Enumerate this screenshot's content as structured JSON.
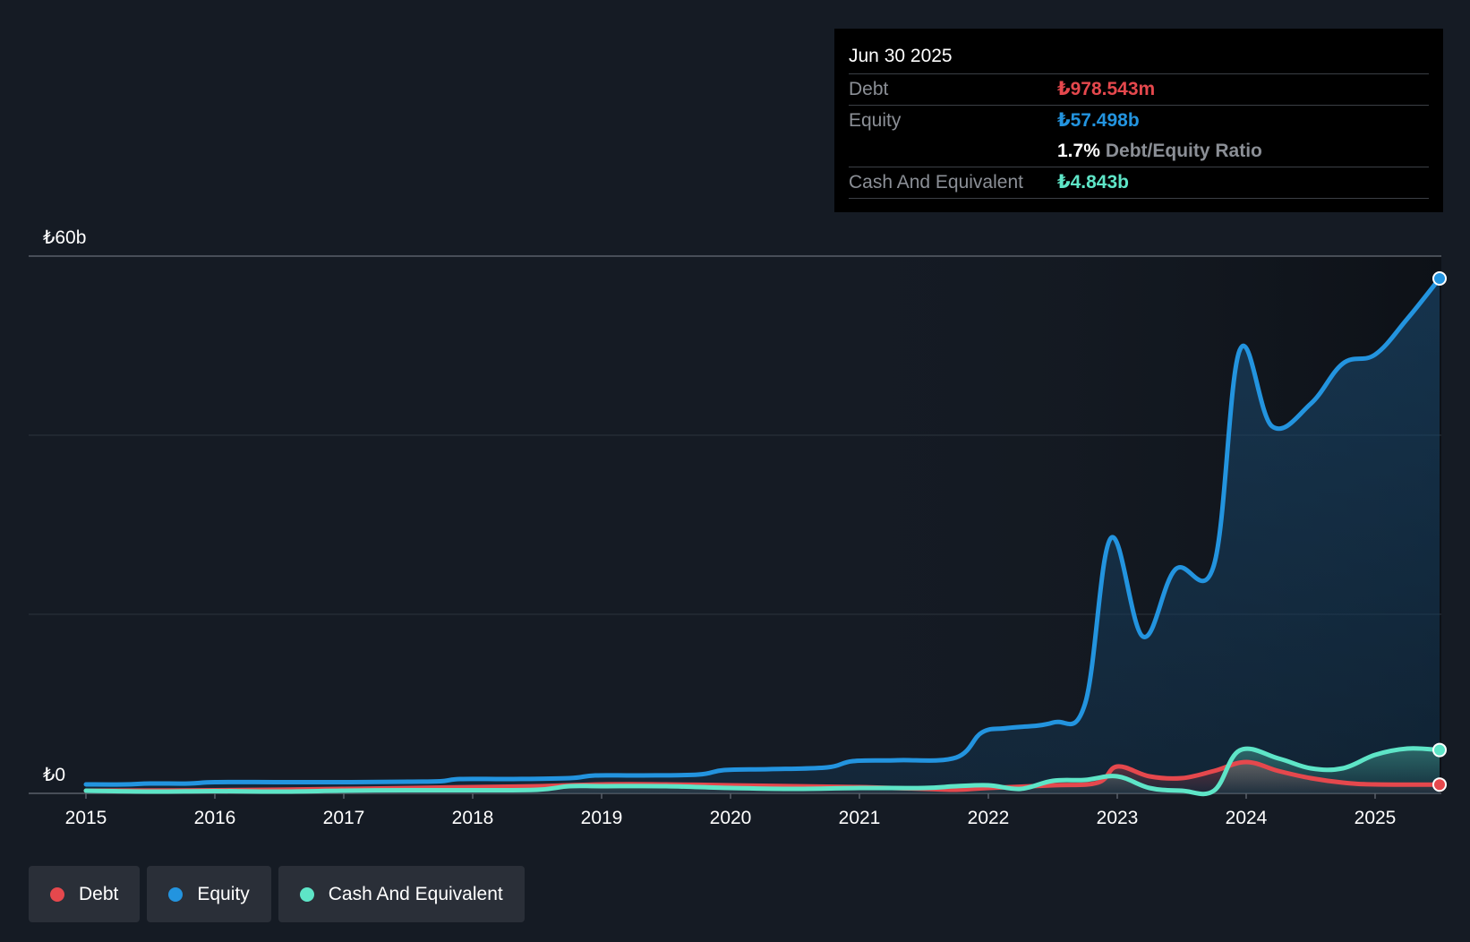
{
  "chart_data": {
    "type": "area",
    "title": "",
    "xlabel": "",
    "ylabel": "",
    "ylim": [
      0,
      60
    ],
    "y_unit": "₺ billions",
    "y_tick_labels": [
      {
        "value": 60,
        "label": "₺60b"
      },
      {
        "value": 0,
        "label": "₺0"
      }
    ],
    "gridlines": [
      60,
      40,
      20,
      0
    ],
    "xlim": [
      2015.0,
      2025.5
    ],
    "x_tick_labels": [
      "2015",
      "2016",
      "2017",
      "2018",
      "2019",
      "2020",
      "2021",
      "2022",
      "2023",
      "2024",
      "2025"
    ],
    "series": [
      {
        "name": "Equity",
        "color": "#2394df",
        "points": [
          [
            2015.0,
            1.0
          ],
          [
            2015.3,
            1.0
          ],
          [
            2015.5,
            1.1
          ],
          [
            2015.8,
            1.1
          ],
          [
            2016.0,
            1.25
          ],
          [
            2016.5,
            1.25
          ],
          [
            2017.0,
            1.25
          ],
          [
            2017.5,
            1.3
          ],
          [
            2017.75,
            1.35
          ],
          [
            2017.9,
            1.6
          ],
          [
            2018.3,
            1.6
          ],
          [
            2018.75,
            1.7
          ],
          [
            2018.95,
            2.0
          ],
          [
            2019.3,
            2.0
          ],
          [
            2019.75,
            2.1
          ],
          [
            2019.95,
            2.6
          ],
          [
            2020.3,
            2.7
          ],
          [
            2020.75,
            2.9
          ],
          [
            2020.95,
            3.6
          ],
          [
            2021.3,
            3.7
          ],
          [
            2021.75,
            4.0
          ],
          [
            2021.95,
            6.8
          ],
          [
            2022.15,
            7.3
          ],
          [
            2022.5,
            7.9
          ],
          [
            2022.75,
            10.0
          ],
          [
            2022.95,
            28.5
          ],
          [
            2023.2,
            17.5
          ],
          [
            2023.45,
            25.0
          ],
          [
            2023.75,
            25.5
          ],
          [
            2023.95,
            49.5
          ],
          [
            2024.2,
            41.0
          ],
          [
            2024.5,
            43.5
          ],
          [
            2024.75,
            48.0
          ],
          [
            2025.0,
            49.0
          ],
          [
            2025.25,
            53.0
          ],
          [
            2025.5,
            57.5
          ]
        ]
      },
      {
        "name": "Debt",
        "color": "#e5484d",
        "points": [
          [
            2015.0,
            0.3
          ],
          [
            2016.0,
            0.35
          ],
          [
            2017.0,
            0.5
          ],
          [
            2018.0,
            0.7
          ],
          [
            2018.5,
            0.8
          ],
          [
            2019.0,
            1.0
          ],
          [
            2019.5,
            1.0
          ],
          [
            2020.0,
            0.9
          ],
          [
            2020.5,
            0.8
          ],
          [
            2021.0,
            0.7
          ],
          [
            2021.5,
            0.5
          ],
          [
            2021.75,
            0.4
          ],
          [
            2022.0,
            0.6
          ],
          [
            2022.5,
            0.9
          ],
          [
            2022.85,
            1.2
          ],
          [
            2023.0,
            3.0
          ],
          [
            2023.25,
            1.9
          ],
          [
            2023.5,
            1.7
          ],
          [
            2023.75,
            2.5
          ],
          [
            2024.0,
            3.5
          ],
          [
            2024.25,
            2.5
          ],
          [
            2024.5,
            1.7
          ],
          [
            2024.75,
            1.2
          ],
          [
            2025.0,
            1.0
          ],
          [
            2025.5,
            0.98
          ]
        ]
      },
      {
        "name": "Cash And Equivalent",
        "color": "#5ee5c7",
        "points": [
          [
            2015.0,
            0.3
          ],
          [
            2015.5,
            0.2
          ],
          [
            2016.0,
            0.25
          ],
          [
            2016.5,
            0.2
          ],
          [
            2017.0,
            0.3
          ],
          [
            2017.5,
            0.35
          ],
          [
            2018.0,
            0.35
          ],
          [
            2018.5,
            0.4
          ],
          [
            2018.75,
            0.8
          ],
          [
            2019.0,
            0.8
          ],
          [
            2019.5,
            0.8
          ],
          [
            2020.0,
            0.6
          ],
          [
            2020.5,
            0.5
          ],
          [
            2021.0,
            0.6
          ],
          [
            2021.5,
            0.6
          ],
          [
            2021.75,
            0.8
          ],
          [
            2022.0,
            0.9
          ],
          [
            2022.25,
            0.5
          ],
          [
            2022.5,
            1.4
          ],
          [
            2022.75,
            1.5
          ],
          [
            2023.0,
            1.9
          ],
          [
            2023.25,
            0.6
          ],
          [
            2023.5,
            0.3
          ],
          [
            2023.75,
            0.3
          ],
          [
            2023.95,
            4.8
          ],
          [
            2024.25,
            3.9
          ],
          [
            2024.5,
            2.8
          ],
          [
            2024.75,
            2.8
          ],
          [
            2025.0,
            4.3
          ],
          [
            2025.25,
            5.0
          ],
          [
            2025.5,
            4.843
          ]
        ]
      }
    ]
  },
  "tooltip": {
    "date": "Jun 30 2025",
    "debt_label": "Debt",
    "debt_value": "₺978.543m",
    "equity_label": "Equity",
    "equity_value": "₺57.498b",
    "ratio_value": "1.7%",
    "ratio_label": "Debt/Equity Ratio",
    "cash_label": "Cash And Equivalent",
    "cash_value": "₺4.843b"
  },
  "legend": [
    {
      "label": "Debt",
      "color": "#e5484d"
    },
    {
      "label": "Equity",
      "color": "#2394df"
    },
    {
      "label": "Cash And Equivalent",
      "color": "#5ee5c7"
    }
  ],
  "colors": {
    "background": "#151b24",
    "debt": "#e5484d",
    "equity": "#2394df",
    "cash": "#5ee5c7"
  }
}
